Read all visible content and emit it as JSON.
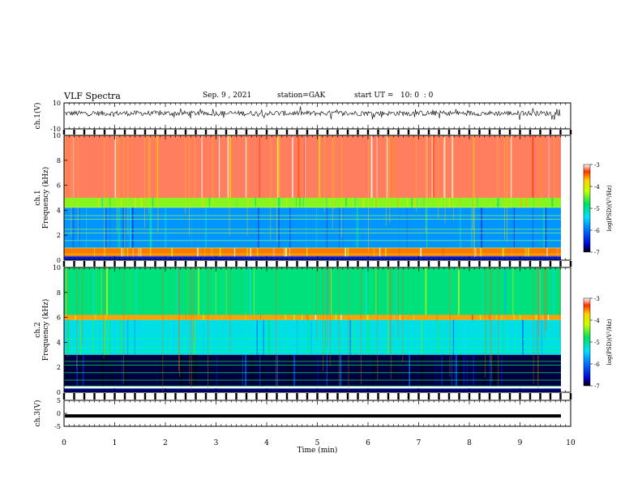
{
  "header": {
    "title": "VLF Spectra",
    "date": "Sep. 9 , 2021",
    "station": "station=GAK",
    "start_ut": "start UT =   10: 0  : 0"
  },
  "chart_data": [
    {
      "type": "line",
      "name": "ch1-waveform-panel",
      "ylabel": "ch.1(V)",
      "ylim": [
        -10,
        10
      ],
      "yticks": [
        "10",
        "-10"
      ],
      "xlim": [
        0,
        10
      ],
      "signal": "noisy waveform centered near 2 V, amplitude approx ±4 V"
    },
    {
      "type": "heatmap",
      "name": "ch1-spectrogram",
      "ylabel_channel": "ch.1",
      "ylabel": "Frequency (kHz)",
      "ylim": [
        0,
        10
      ],
      "yticks": [
        "0",
        "2",
        "4",
        "6",
        "8",
        "10"
      ],
      "xlim": [
        0,
        10
      ],
      "colorbar": {
        "label": "log(PSD)(V²/Hz)",
        "range": [
          -7,
          -3
        ],
        "ticks": [
          "-3",
          "-4",
          "-5",
          "-6",
          "-7"
        ]
      },
      "bands_kHz": [
        {
          "from": 5.0,
          "to": 10.0,
          "level": -3.2
        },
        {
          "from": 4.2,
          "to": 5.0,
          "level": -4.4
        },
        {
          "from": 1.0,
          "to": 4.2,
          "level": -5.8
        },
        {
          "from": 0.3,
          "to": 1.0,
          "level": -3.5
        }
      ]
    },
    {
      "type": "heatmap",
      "name": "ch2-spectrogram",
      "ylabel_channel": "ch.2",
      "ylabel": "Frequency (kHz)",
      "ylim": [
        0,
        10
      ],
      "yticks": [
        "0",
        "2",
        "4",
        "6",
        "8",
        "10"
      ],
      "xlim": [
        0,
        10
      ],
      "colorbar": {
        "label": "log(PSD)(V²/Hz)",
        "range": [
          -7,
          -3
        ],
        "ticks": [
          "-3",
          "-4",
          "-5",
          "-6",
          "-7"
        ]
      },
      "bands_kHz": [
        {
          "from": 6.2,
          "to": 10.0,
          "level": -4.9
        },
        {
          "from": 5.8,
          "to": 6.2,
          "level": -3.6
        },
        {
          "from": 3.0,
          "to": 5.8,
          "level": -5.3
        },
        {
          "from": 0.5,
          "to": 3.0,
          "level": -6.9
        }
      ]
    },
    {
      "type": "line",
      "name": "ch3-waveform-panel",
      "ylabel": "ch.3(V)",
      "ylim": [
        -5,
        5
      ],
      "yticks": [
        "5",
        "0",
        "-5"
      ],
      "xlim": [
        0,
        10
      ],
      "signal": "constant near -1 V"
    }
  ],
  "xaxis": {
    "label": "Time (min)",
    "ticks": [
      "0",
      "1",
      "2",
      "3",
      "4",
      "5",
      "6",
      "7",
      "8",
      "9",
      "10"
    ]
  }
}
